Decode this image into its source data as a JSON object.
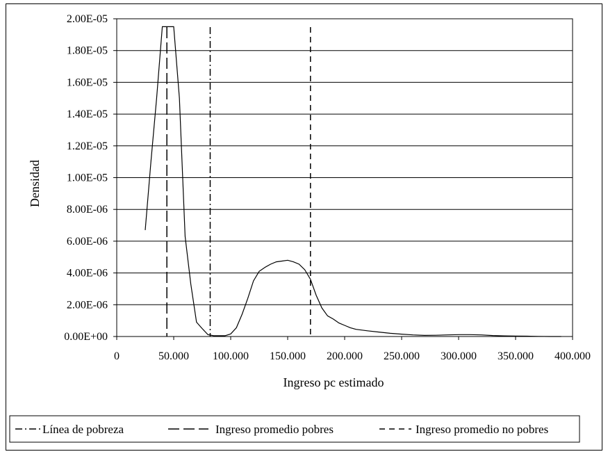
{
  "chart_data": {
    "type": "line",
    "title": "",
    "xlabel": "Ingreso pc estimado",
    "ylabel": "Densidad",
    "xlim": [
      0,
      400000
    ],
    "ylim": [
      0,
      2e-05
    ],
    "grid": true,
    "x_ticks": [
      0,
      50000,
      100000,
      150000,
      200000,
      250000,
      300000,
      350000,
      400000
    ],
    "x_tick_labels": [
      "0",
      "50.000",
      "100.000",
      "150.000",
      "200.000",
      "250.000",
      "300.000",
      "350.000",
      "400.000"
    ],
    "y_ticks": [
      0,
      2e-06,
      4e-06,
      6e-06,
      8e-06,
      1e-05,
      1.2e-05,
      1.4e-05,
      1.6e-05,
      1.8e-05,
      2e-05
    ],
    "y_tick_labels": [
      "0.00E+00",
      "2.00E-06",
      "4.00E-06",
      "6.00E-06",
      "8.00E-06",
      "1.00E-05",
      "1.20E-05",
      "1.40E-05",
      "1.60E-05",
      "1.80E-05",
      "2.00E-05"
    ],
    "legend_position": "bottom",
    "series": [
      {
        "x": [
          25000,
          30000,
          35000,
          40000,
          45000,
          50000,
          55000,
          60000,
          65000,
          70000,
          75000,
          80000,
          85000,
          90000,
          95000,
          100000,
          105000,
          110000,
          115000,
          120000,
          125000,
          130000,
          135000,
          140000,
          145000,
          150000,
          155000,
          160000,
          165000,
          170000,
          175000,
          180000,
          185000,
          190000,
          195000,
          200000,
          205000,
          210000,
          220000,
          230000,
          240000,
          250000,
          260000,
          270000,
          280000,
          290000,
          300000,
          310000,
          320000,
          330000,
          340000,
          350000,
          360000,
          370000,
          380000,
          390000
        ],
        "y": [
          6.7e-06,
          1.1e-05,
          1.5e-05,
          1.95e-05,
          1.95e-05,
          1.95e-05,
          1.5e-05,
          6.3e-06,
          3.3e-06,
          9e-07,
          5e-07,
          1.2e-07,
          5e-08,
          5e-08,
          5e-08,
          1.6e-07,
          5.5e-07,
          1.4e-06,
          2.4e-06,
          3.5e-06,
          4.1e-06,
          4.35e-06,
          4.55e-06,
          4.7e-06,
          4.75e-06,
          4.8e-06,
          4.7e-06,
          4.55e-06,
          4.2e-06,
          3.6e-06,
          2.6e-06,
          1.8e-06,
          1.3e-06,
          1.1e-06,
          8.5e-07,
          7e-07,
          5.5e-07,
          4.5e-07,
          3.6e-07,
          2.8e-07,
          2e-07,
          1.5e-07,
          1e-07,
          7e-08,
          8e-08,
          1e-07,
          1.2e-07,
          1.2e-07,
          1e-07,
          6e-08,
          4e-08,
          3e-08,
          2e-08,
          1e-08,
          0,
          0
        ]
      }
    ],
    "reference_lines": [
      {
        "name": "Línea de pobreza",
        "x": 82000,
        "style": "dash-dot"
      },
      {
        "name": "Ingreso promedio pobres",
        "x": 44000,
        "style": "long-dash"
      },
      {
        "name": "Ingreso promedio no pobres",
        "x": 170000,
        "style": "dash"
      }
    ],
    "legend": [
      "Línea de pobreza",
      "Ingreso promedio pobres",
      "Ingreso promedio no pobres"
    ]
  }
}
